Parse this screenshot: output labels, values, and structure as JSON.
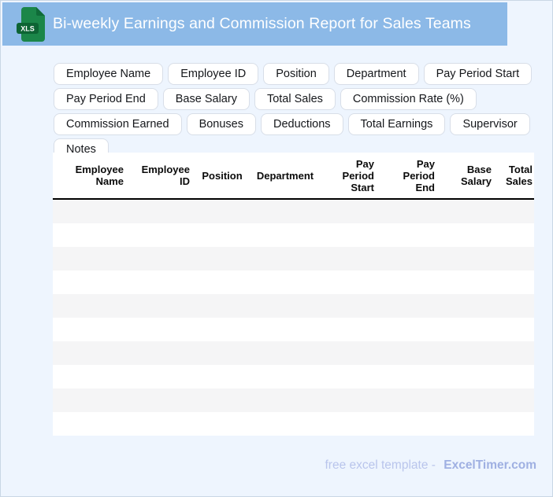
{
  "header": {
    "title": "Bi-weekly Earnings and Commission Report for Sales Teams",
    "file_icon_label": "XLS"
  },
  "chips": [
    "Employee Name",
    "Employee ID",
    "Position",
    "Department",
    "Pay Period Start",
    "Pay Period End",
    "Base Salary",
    "Total Sales",
    "Commission Rate (%)",
    "Commission Earned",
    "Bonuses",
    "Deductions",
    "Total Earnings",
    "Supervisor",
    "Notes"
  ],
  "table": {
    "columns": [
      {
        "label": "Employee\nName"
      },
      {
        "label": "Employee\nID"
      },
      {
        "label": "Position"
      },
      {
        "label": "Department"
      },
      {
        "label": "Pay\nPeriod\nStart"
      },
      {
        "label": "Pay\nPeriod\nEnd"
      },
      {
        "label": "Base\nSalary"
      },
      {
        "label": "Total\nSales"
      }
    ],
    "empty_row_count": 10
  },
  "footer": {
    "prefix": "free excel template -",
    "brand": "ExcelTimer.com"
  },
  "colors": {
    "header_bg": "#8CB9E7",
    "page_bg": "#EEF5FE",
    "page_border": "#C9D7E5",
    "chip_border": "#D8DEE8",
    "row_alt": "#F5F5F6",
    "header_rule": "#000000",
    "icon_green": "#1B8649",
    "icon_green_dark": "#0D6434",
    "footer_prefix_color": "#B9C5EC",
    "footer_brand_color": "#9FB0E2"
  }
}
